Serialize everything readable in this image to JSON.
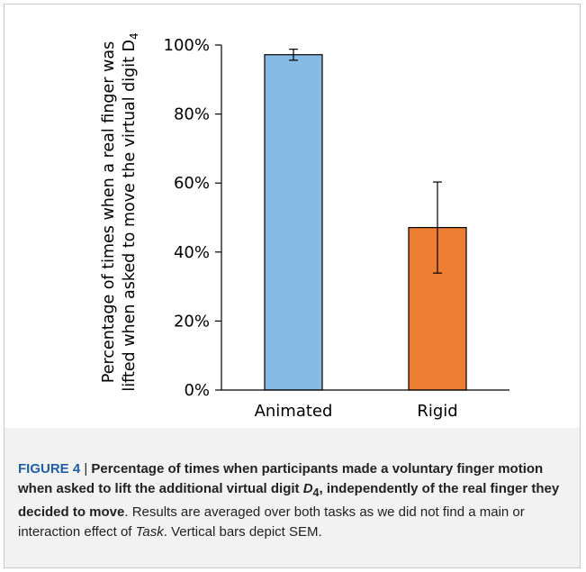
{
  "chart_data": {
    "type": "bar",
    "categories": [
      "Animated",
      "Rigid"
    ],
    "values": [
      97.2,
      47.1
    ],
    "error": [
      1.6,
      13.2
    ],
    "ylim": [
      0,
      100
    ],
    "yticks": [
      "0%",
      "20%",
      "40%",
      "60%",
      "80%",
      "100%"
    ],
    "ylabel_line1": "Percentage of times when a real finger was",
    "ylabel_line2": "lifted when asked to move the virtual digit D",
    "ylabel_sub": "4",
    "colors": [
      "#85bbe5",
      "#ed7d31"
    ]
  },
  "caption": {
    "label": "FIGURE 4",
    "sep": " | ",
    "title_a": "Percentage of times when participants made a voluntary finger motion when asked to lift the additional virtual digit ",
    "title_digit": "D",
    "title_sub": "4",
    "title_b": ", independently of the real finger they decided to move",
    "body_a": ". Results are averaged over both tasks as we did not find a main or interaction effect of ",
    "body_task": "Task",
    "body_b": ". Vertical bars depict SEM."
  }
}
